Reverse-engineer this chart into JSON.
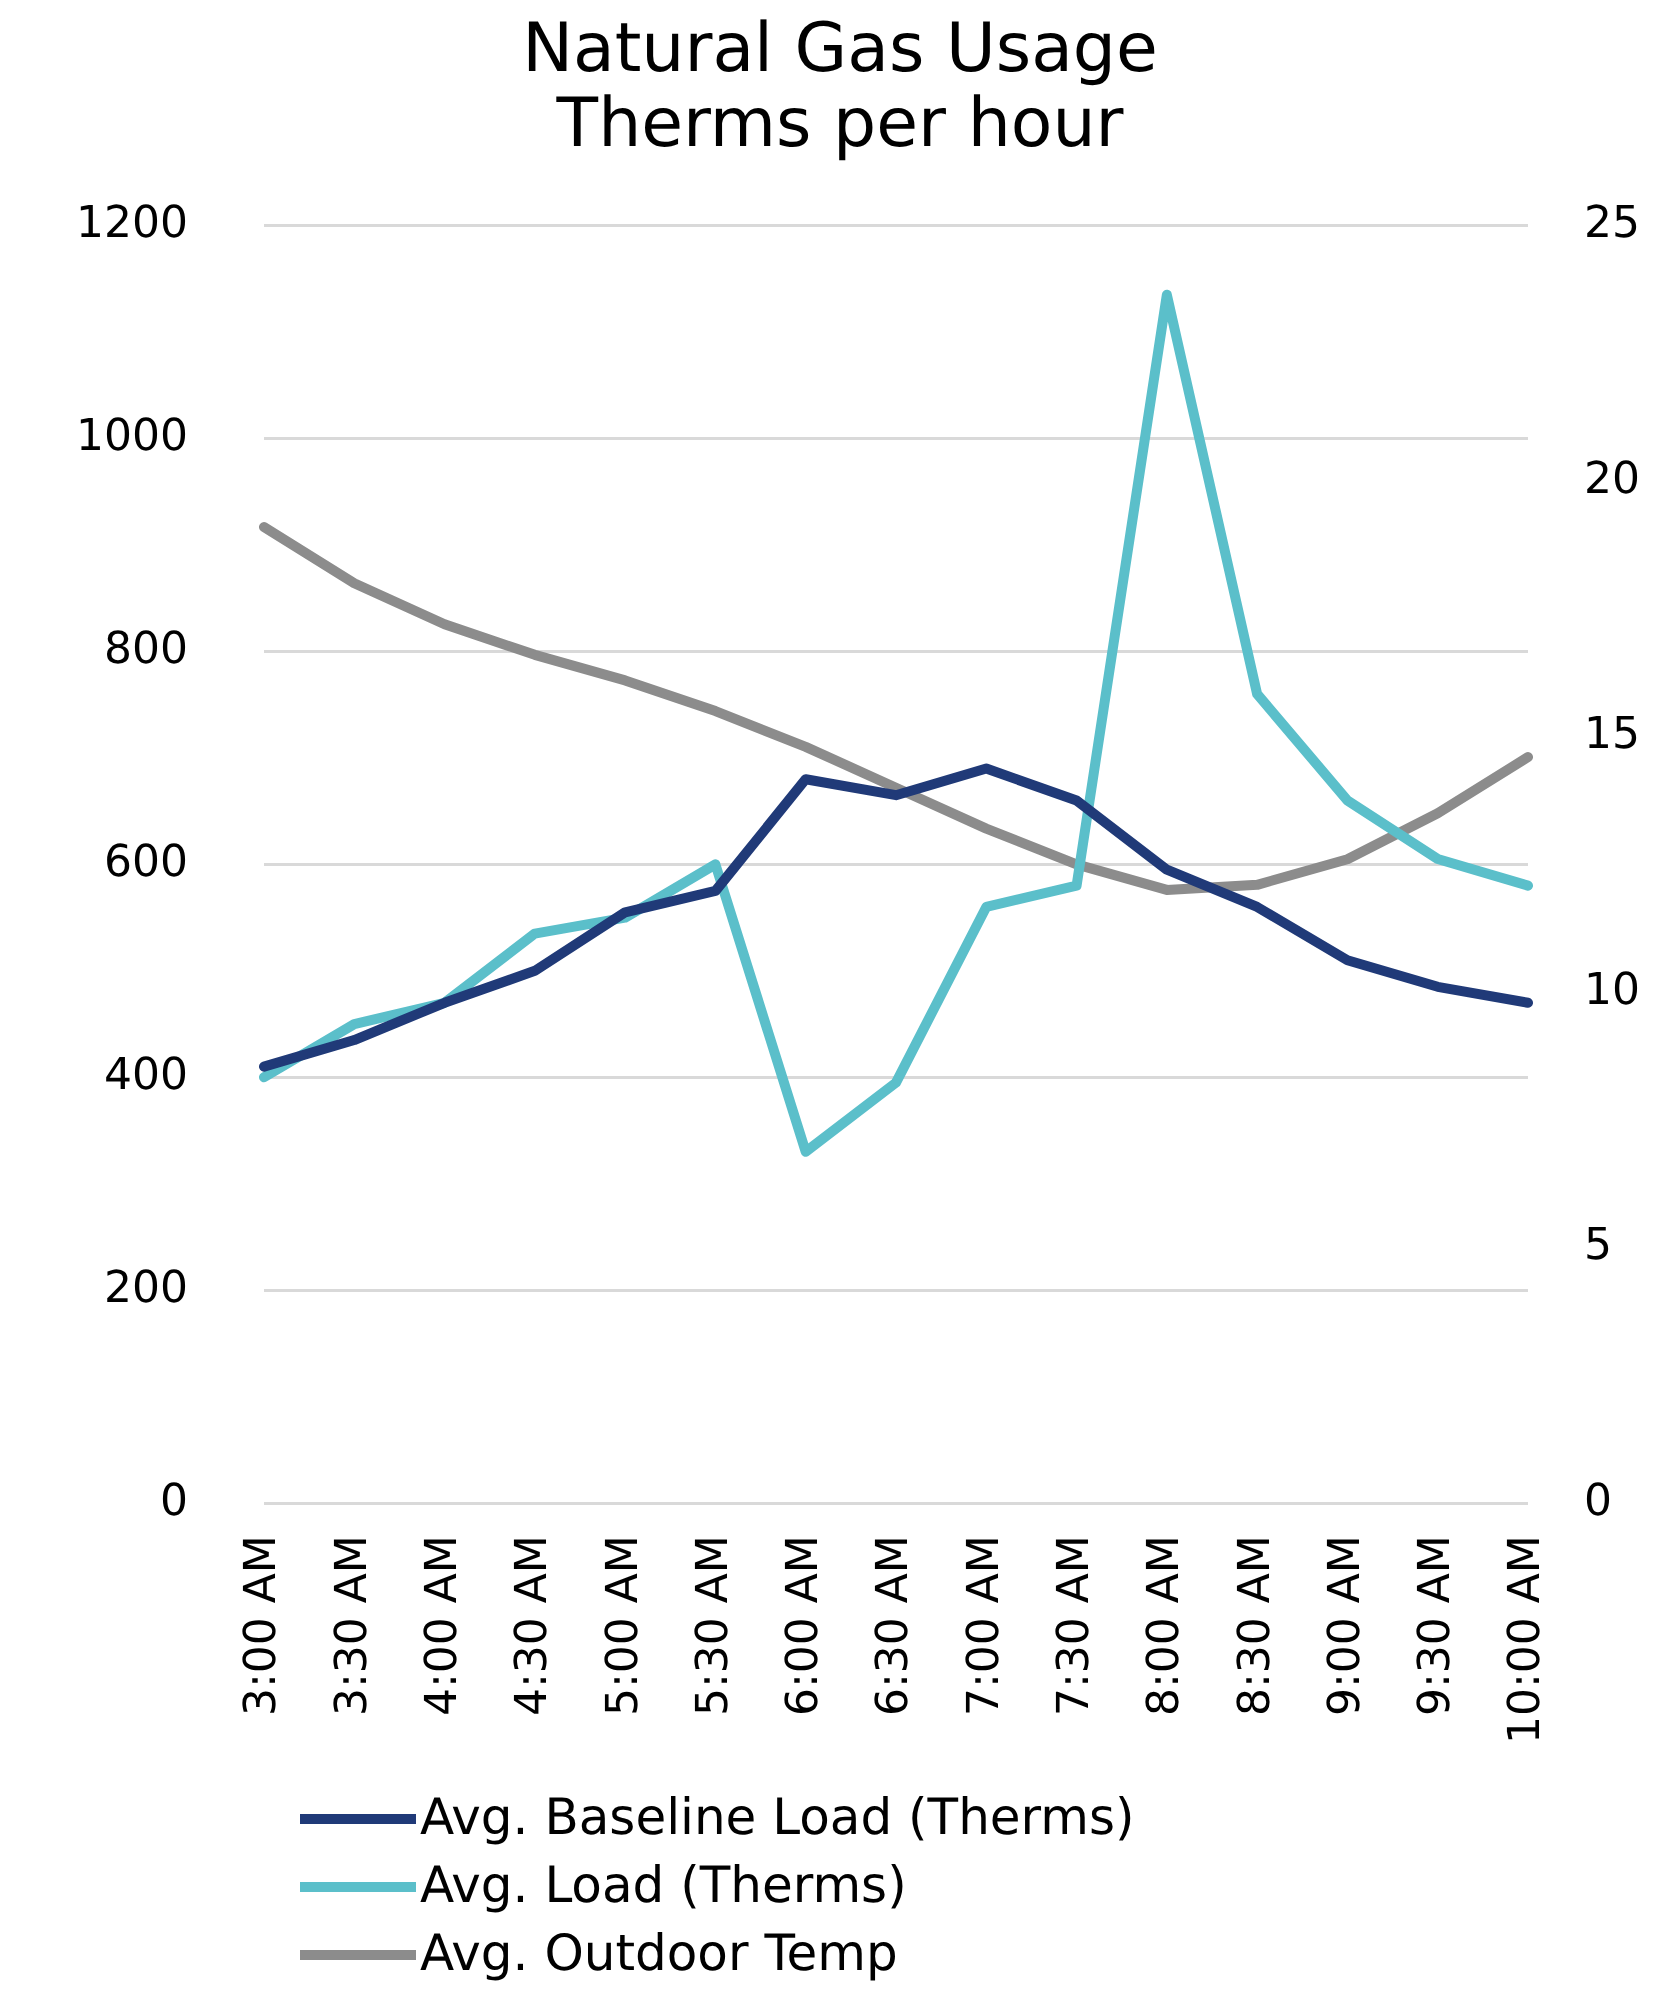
{
  "chart_data": {
    "type": "line",
    "title": "Natural Gas Usage",
    "subtitle": "Therms per hour",
    "categories": [
      "3:00 AM",
      "3:30 AM",
      "4:00 AM",
      "4:30 AM",
      "5:00 AM",
      "5:30 AM",
      "6:00 AM",
      "6:30 AM",
      "7:00 AM",
      "7:30 AM",
      "8:00 AM",
      "8:30 AM",
      "9:00 AM",
      "9:30 AM",
      "10:00 AM"
    ],
    "series": [
      {
        "name": "Avg. Baseline Load (Therms)",
        "color": "#203a78",
        "values": [
          410,
          435,
          470,
          500,
          555,
          575,
          680,
          665,
          690,
          660,
          595,
          560,
          510,
          485,
          470
        ]
      },
      {
        "name": "Avg. Load (Therms)",
        "color": "#5bbfca",
        "values": [
          400,
          450,
          470,
          535,
          550,
          600,
          330,
          395,
          560,
          580,
          1135,
          760,
          660,
          605,
          580
        ]
      },
      {
        "name": "Avg. Outdoor Temp",
        "color": "#8c8c8c",
        "axis": "y2",
        "values": [
          19.1,
          18.0,
          17.2,
          16.6,
          16.1,
          15.5,
          14.8,
          14.0,
          13.2,
          12.5,
          12.0,
          12.1,
          12.6,
          13.5,
          14.6
        ]
      }
    ],
    "ylim": [
      0,
      1200
    ],
    "yticks": [
      0,
      200,
      400,
      600,
      800,
      1000,
      1200
    ],
    "y2lim": [
      0,
      25
    ],
    "y2ticks": [
      0,
      5,
      10,
      15,
      20,
      25
    ],
    "grid": "y",
    "legend": "bottom",
    "marker": "none",
    "line_style": "solid"
  }
}
